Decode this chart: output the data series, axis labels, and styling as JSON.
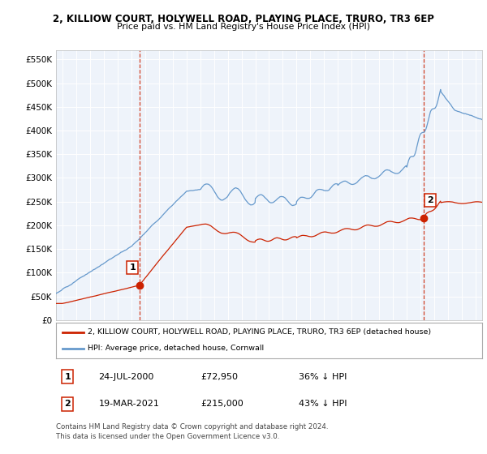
{
  "title": "2, KILLIOW COURT, HOLYWELL ROAD, PLAYING PLACE, TRURO, TR3 6EP",
  "subtitle": "Price paid vs. HM Land Registry's House Price Index (HPI)",
  "hpi_color": "#6699CC",
  "price_color": "#CC2200",
  "vline_color": "#CC2200",
  "background_color": "#ffffff",
  "plot_bg_color": "#EEF3FA",
  "grid_color": "#ffffff",
  "ylim": [
    0,
    570000
  ],
  "yticks": [
    0,
    50000,
    100000,
    150000,
    200000,
    250000,
    300000,
    350000,
    400000,
    450000,
    500000,
    550000
  ],
  "transactions": [
    {
      "date_num": 2000.56,
      "price": 72950,
      "label": "1"
    },
    {
      "date_num": 2021.22,
      "price": 215000,
      "label": "2"
    }
  ],
  "legend_line1": "2, KILLIOW COURT, HOLYWELL ROAD, PLAYING PLACE, TRURO, TR3 6EP (detached house)",
  "legend_line2": "HPI: Average price, detached house, Cornwall",
  "table_rows": [
    [
      "1",
      "24-JUL-2000",
      "£72,950",
      "36% ↓ HPI"
    ],
    [
      "2",
      "19-MAR-2021",
      "£215,000",
      "43% ↓ HPI"
    ]
  ],
  "footer": "Contains HM Land Registry data © Crown copyright and database right 2024.\nThis data is licensed under the Open Government Licence v3.0.",
  "xmin": 1994.5,
  "xmax": 2025.5
}
